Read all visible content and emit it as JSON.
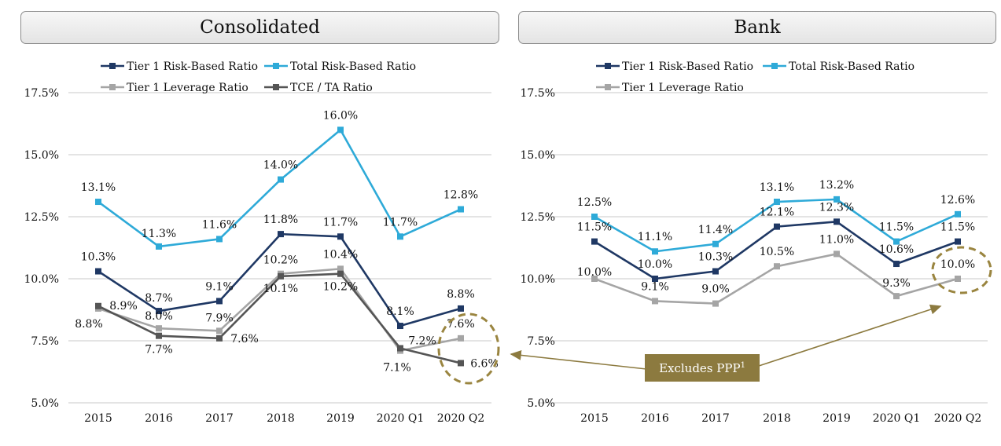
{
  "colors": {
    "tier1_rbr": "#1f3864",
    "total_rbr": "#2eaad8",
    "tier1_lev": "#a5a5a5",
    "tce_ta": "#555555",
    "grid": "#c8c8c8",
    "callout_bg": "#8c7a3f",
    "callout_border": "#9a8540"
  },
  "callout": {
    "text": "Excludes PPP",
    "superscript": "1"
  },
  "chart_data": [
    {
      "id": "consolidated",
      "title": "Consolidated",
      "type": "line",
      "categories": [
        "2015",
        "2016",
        "2017",
        "2018",
        "2019",
        "2020 Q1",
        "2020 Q2"
      ],
      "ylim": [
        5.0,
        17.5
      ],
      "yticks": [
        "5.0%",
        "7.5%",
        "10.0%",
        "12.5%",
        "15.0%",
        "17.5%"
      ],
      "ytick_values": [
        5.0,
        7.5,
        10.0,
        12.5,
        15.0,
        17.5
      ],
      "series": [
        {
          "name": "Tier 1 Risk-Based Ratio",
          "color_key": "tier1_rbr",
          "values": [
            10.3,
            8.7,
            9.1,
            11.8,
            11.7,
            8.1,
            8.8
          ],
          "labels": [
            "10.3%",
            "8.7%",
            "9.1%",
            "11.8%",
            "11.7%",
            "8.1%",
            "8.8%"
          ]
        },
        {
          "name": "Total Risk-Based Ratio",
          "color_key": "total_rbr",
          "values": [
            13.1,
            11.3,
            11.6,
            14.0,
            16.0,
            11.7,
            12.8
          ],
          "labels": [
            "13.1%",
            "11.3%",
            "11.6%",
            "14.0%",
            "16.0%",
            "11.7%",
            "12.8%"
          ]
        },
        {
          "name": "Tier 1 Leverage Ratio",
          "color_key": "tier1_lev",
          "values": [
            8.8,
            8.0,
            7.9,
            10.2,
            10.4,
            7.1,
            7.6
          ],
          "labels": [
            "8.8%",
            "8.0%",
            "7.9%",
            "10.2%",
            "10.4%",
            "7.1%",
            "7.6%"
          ]
        },
        {
          "name": "TCE / TA Ratio",
          "color_key": "tce_ta",
          "values": [
            8.9,
            7.7,
            7.6,
            10.1,
            10.2,
            7.2,
            6.6
          ],
          "labels": [
            "8.9%",
            "7.7%",
            "7.6%",
            "10.1%",
            "10.2%",
            "7.2%",
            "6.6%"
          ]
        }
      ]
    },
    {
      "id": "bank",
      "title": "Bank",
      "type": "line",
      "categories": [
        "2015",
        "2016",
        "2017",
        "2018",
        "2019",
        "2020 Q1",
        "2020 Q2"
      ],
      "ylim": [
        5.0,
        17.5
      ],
      "yticks": [
        "5.0%",
        "7.5%",
        "10.0%",
        "12.5%",
        "15.0%",
        "17.5%"
      ],
      "ytick_values": [
        5.0,
        7.5,
        10.0,
        12.5,
        15.0,
        17.5
      ],
      "series": [
        {
          "name": "Tier 1 Risk-Based Ratio",
          "color_key": "tier1_rbr",
          "values": [
            11.5,
            10.0,
            10.3,
            12.1,
            12.3,
            10.6,
            11.5
          ],
          "labels": [
            "11.5%",
            "10.0%",
            "10.3%",
            "12.1%",
            "12.3%",
            "10.6%",
            "11.5%"
          ]
        },
        {
          "name": "Total Risk-Based Ratio",
          "color_key": "total_rbr",
          "values": [
            12.5,
            11.1,
            11.4,
            13.1,
            13.2,
            11.5,
            12.6
          ],
          "labels": [
            "12.5%",
            "11.1%",
            "11.4%",
            "13.1%",
            "13.2%",
            "11.5%",
            "12.6%"
          ]
        },
        {
          "name": "Tier 1 Leverage Ratio",
          "color_key": "tier1_lev",
          "values": [
            10.0,
            9.1,
            9.0,
            10.5,
            11.0,
            9.3,
            10.0
          ],
          "labels": [
            "10.0%",
            "9.1%",
            "9.0%",
            "10.5%",
            "11.0%",
            "9.3%",
            "10.0%"
          ]
        }
      ]
    }
  ]
}
